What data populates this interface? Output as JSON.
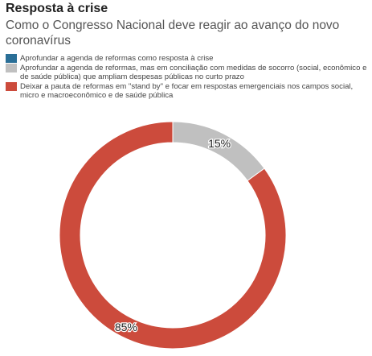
{
  "header": {
    "title": "Resposta à crise",
    "subtitle": "Como o Congresso Nacional deve reagir ao avanço do novo coronavírus"
  },
  "legend": {
    "items": [
      {
        "label": "Aprofundar a agenda de reformas como resposta à crise",
        "color": "#2a6f97"
      },
      {
        "label": "Aprofundar a agenda de reformas, mas em conciliação com medidas de socorro (social, econômico e de saúde pública) que ampliam despesas públicas no curto prazo",
        "color": "#c0c0c0"
      },
      {
        "label": "Deixar a pauta de reformas em \"stand by\" e focar em respostas emergenciais nos campos social, micro e macroeconômico e de saúde pública",
        "color": "#cc4b3c"
      }
    ]
  },
  "chart_data": {
    "type": "pie",
    "donut": true,
    "title": "Resposta à crise",
    "subtitle": "Como o Congresso Nacional deve reagir ao avanço do novo coronavírus",
    "categories": [
      "Aprofundar a agenda de reformas como resposta à crise",
      "Aprofundar a agenda de reformas, mas em conciliação com medidas de socorro (social, econômico e de saúde pública) que ampliam despesas públicas no curto prazo",
      "Deixar a pauta de reformas em \"stand by\" e focar em respostas emergenciais nos campos social, micro e macroeconômico e de saúde pública"
    ],
    "values": [
      0,
      15,
      85
    ],
    "data_labels": [
      "",
      "15%",
      "85%"
    ],
    "colors": [
      "#2a6f97",
      "#c0c0c0",
      "#cc4b3c"
    ],
    "legend_position": "top"
  }
}
